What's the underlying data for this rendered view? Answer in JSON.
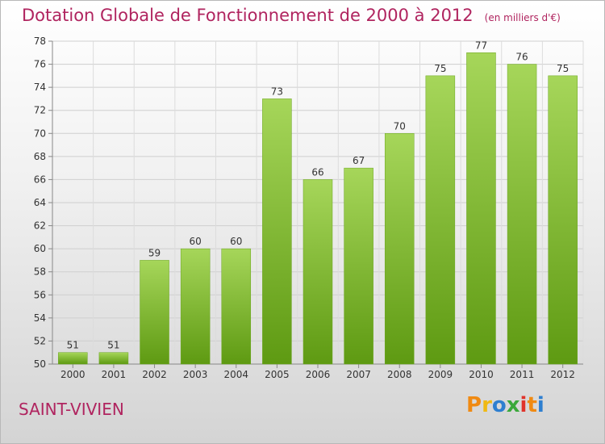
{
  "chart_data": {
    "type": "bar",
    "title": "Dotation Globale de Fonctionnement de 2000 à 2012",
    "unit_note": "(en milliers d'€)",
    "categories": [
      "2000",
      "2001",
      "2002",
      "2003",
      "2004",
      "2005",
      "2006",
      "2007",
      "2008",
      "2009",
      "2010",
      "2011",
      "2012"
    ],
    "values": [
      51,
      51,
      59,
      60,
      60,
      73,
      66,
      67,
      70,
      75,
      77,
      76,
      75
    ],
    "ylim": [
      50,
      78
    ],
    "yticks": [
      50,
      52,
      54,
      56,
      58,
      60,
      62,
      64,
      66,
      68,
      70,
      72,
      74,
      76,
      78
    ],
    "grid": true,
    "bar_color": "#7dba2e",
    "bar_color_light": "#a6d65a",
    "bar_color_dark": "#5e9a12"
  },
  "commune_name": "SAINT-VIVIEN",
  "logo": {
    "letters": [
      "P",
      "r",
      "o",
      "x",
      "i",
      "t",
      "i"
    ],
    "colors": [
      "#f08a12",
      "#f0b912",
      "#2e7fd0",
      "#3aa83a",
      "#e0332b",
      "#f08a12",
      "#2e7fd0"
    ]
  },
  "theme": {
    "title_color": "#b0245f"
  }
}
